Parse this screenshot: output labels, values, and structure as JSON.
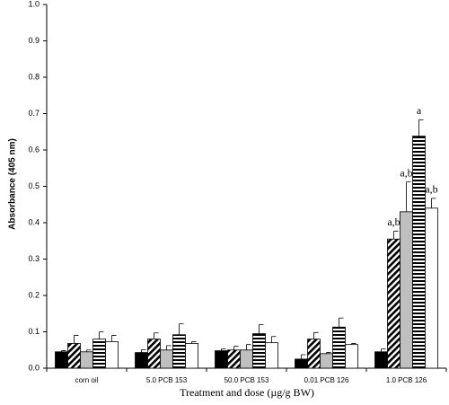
{
  "chart_data": {
    "type": "bar",
    "x_label": "Treatment and dose (µg/g BW)",
    "y_label": "Absorbance (405 nm)",
    "categories": [
      "corn oil",
      "5.0 PCB 153",
      "50.0 PCB 153",
      "0.01 PCB 126",
      "1.0 PCB 126"
    ],
    "ylim": [
      0,
      1
    ],
    "yticks": [
      {
        "value": 0,
        "label": "0.0"
      },
      0.1,
      0.2,
      0.3,
      0.4,
      0.5,
      0.6,
      0.7,
      0.8,
      0.9,
      {
        "value": 1,
        "label": "1.0"
      }
    ],
    "series": [
      {
        "color": "#000000",
        "pattern": "solid",
        "values": [
          0.045,
          0.043,
          0.048,
          0.025,
          0.045
        ],
        "errors": [
          0.003,
          0.008,
          0.005,
          0.012,
          0.008
        ],
        "annotations": [
          null,
          null,
          null,
          null,
          null
        ]
      },
      {
        "color": "#000000",
        "pattern": "diagonal",
        "values": [
          0.068,
          0.08,
          0.05,
          0.08,
          0.355
        ],
        "errors": [
          0.022,
          0.017,
          0.01,
          0.018,
          0.022
        ],
        "annotations": [
          null,
          null,
          null,
          null,
          "a,b"
        ]
      },
      {
        "color": "#bfbfbf",
        "pattern": "solid",
        "values": [
          0.045,
          0.05,
          0.05,
          0.04,
          0.43
        ],
        "errors": [
          0.005,
          0.012,
          0.015,
          0.003,
          0.082
        ],
        "annotations": [
          null,
          null,
          null,
          null,
          "a,b"
        ]
      },
      {
        "color": "#000000",
        "pattern": "horizontal",
        "values": [
          0.08,
          0.092,
          0.095,
          0.113,
          0.638
        ],
        "errors": [
          0.02,
          0.03,
          0.025,
          0.025,
          0.045
        ],
        "annotations": [
          null,
          null,
          null,
          null,
          "a"
        ]
      },
      {
        "color": "#ffffff",
        "pattern": "solid",
        "values": [
          0.073,
          0.068,
          0.07,
          0.065,
          0.44
        ],
        "errors": [
          0.017,
          0.005,
          0.017,
          0.003,
          0.027
        ],
        "annotations": [
          null,
          null,
          null,
          null,
          "a,b"
        ]
      }
    ]
  }
}
